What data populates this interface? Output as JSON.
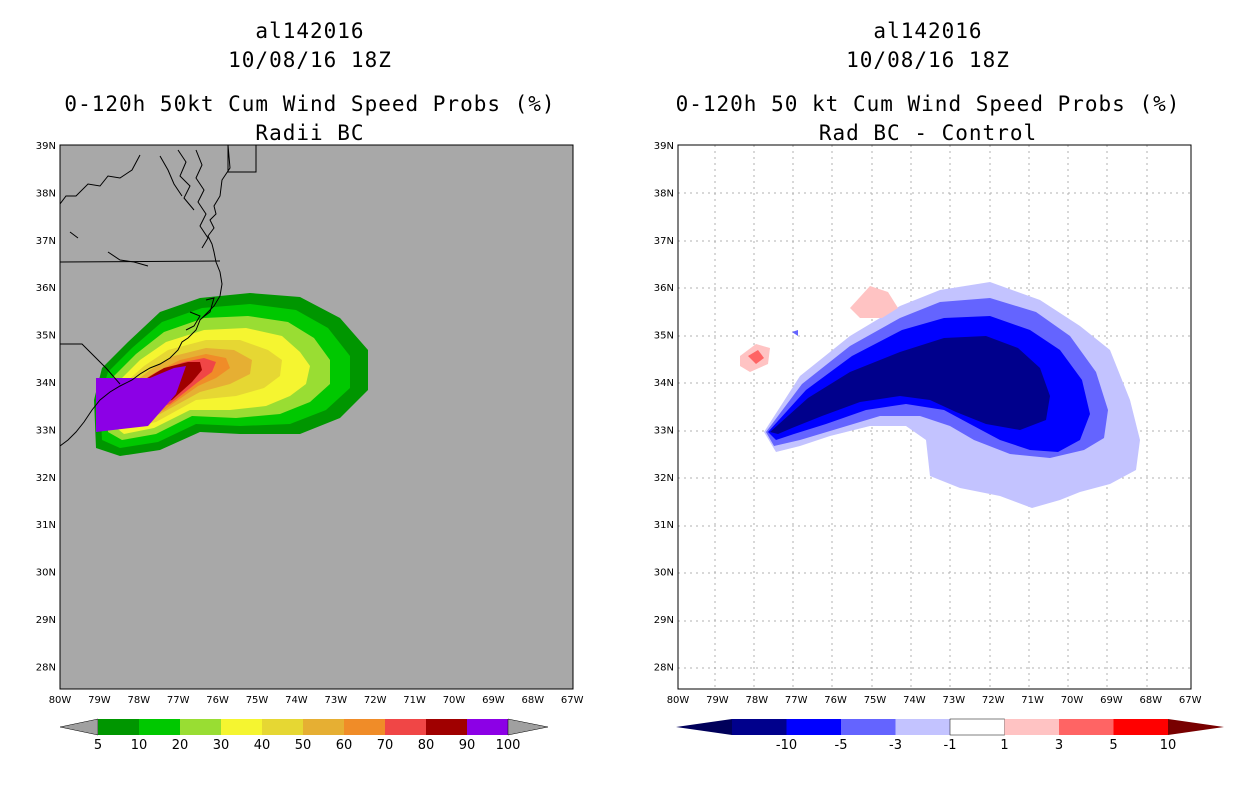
{
  "left_panel": {
    "title_line1": "al142016",
    "title_line2": "10/08/16 18Z",
    "title_line3": "0-120h 50kt Cum Wind Speed Probs (%)",
    "title_line4": "Radii BC",
    "background_color": "#a8a8a8",
    "legend_labels": [
      "5",
      "10",
      "20",
      "30",
      "40",
      "50",
      "60",
      "70",
      "80",
      "90",
      "100"
    ],
    "legend_colors": [
      "#009600",
      "#00c800",
      "#99dd33",
      "#f5f530",
      "#e6d733",
      "#e6af33",
      "#f08c28",
      "#f04646",
      "#a00000",
      "#8c00e6"
    ],
    "legend_end_color": "#a0a0a0"
  },
  "right_panel": {
    "title_line1": "al142016",
    "title_line2": "10/08/16 18Z",
    "title_line3": "0-120h 50 kt Cum Wind Speed Probs (%)",
    "title_line4": "Rad BC - Control",
    "background_color": "#ffffff",
    "legend_labels": [
      "-10",
      "-5",
      "-3",
      "-1",
      "1",
      "3",
      "5",
      "10"
    ],
    "legend_colors": [
      "#00008c",
      "#0000ff",
      "#6464ff",
      "#c3c3ff",
      "#ffffff",
      "#ffc3c3",
      "#ff6464",
      "#ff0000"
    ],
    "legend_left_end": "#00005a",
    "legend_right_end": "#780000"
  },
  "axes": {
    "lat_labels": [
      "39N",
      "38N",
      "37N",
      "36N",
      "35N",
      "34N",
      "33N",
      "32N",
      "31N",
      "30N",
      "29N",
      "28N"
    ],
    "lon_labels": [
      "80W",
      "79W",
      "78W",
      "77W",
      "76W",
      "75W",
      "74W",
      "73W",
      "72W",
      "71W",
      "70W",
      "69W",
      "68W",
      "67W"
    ]
  }
}
